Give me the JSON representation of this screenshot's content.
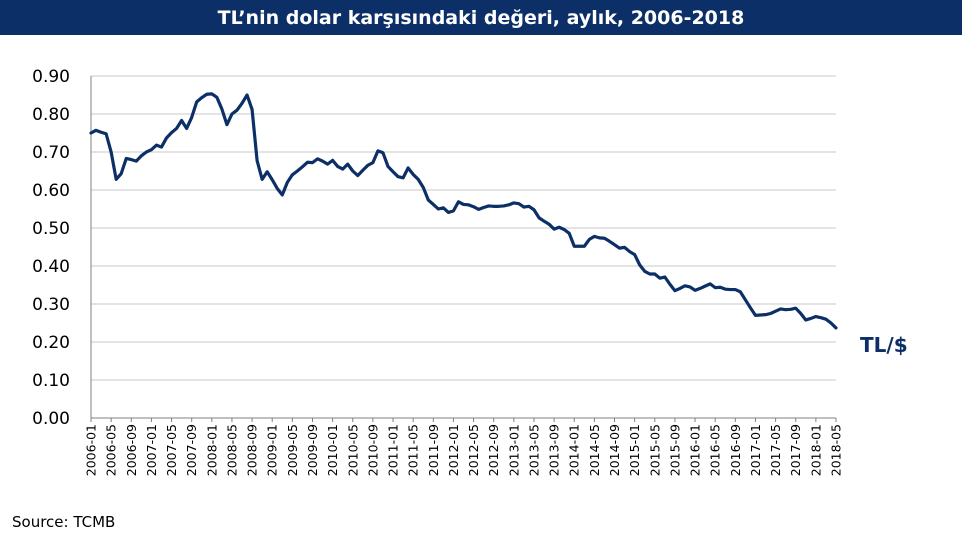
{
  "title": "TL’nin dolar karşısındaki değeri, aylık, 2006-2018",
  "source": "Source: TCMB",
  "colors": {
    "title_bg": "#0b2f66",
    "title_text": "#ffffff",
    "series": "#0b2f66",
    "grid": "#c8c8c8",
    "axis": "#808080"
  },
  "chart_data": {
    "type": "line",
    "title": "TL’nin dolar karşısındaki değeri, aylık, 2006-2018",
    "xlabel": "",
    "ylabel": "",
    "ylim": [
      0,
      0.9
    ],
    "yticks": [
      "0.00",
      "0.10",
      "0.20",
      "0.30",
      "0.40",
      "0.50",
      "0.60",
      "0.70",
      "0.80",
      "0.90"
    ],
    "grid": true,
    "xticks": [
      "2006-01",
      "2006-05",
      "2006-09",
      "2007-01",
      "2007-05",
      "2007-09",
      "2008-01",
      "2008-05",
      "2008-09",
      "2009-01",
      "2009-05",
      "2009-09",
      "2010-01",
      "2010-05",
      "2010-09",
      "2011-01",
      "2011-05",
      "2011-09",
      "2012-01",
      "2012-05",
      "2012-09",
      "2013-01",
      "2013-05",
      "2013-09",
      "2014-01",
      "2014-05",
      "2014-09",
      "2015-01",
      "2015-05",
      "2015-09",
      "2016-01",
      "2016-05",
      "2016-09",
      "2017-01",
      "2017-05",
      "2017-09",
      "2018-01",
      "2018-05"
    ],
    "series": [
      {
        "name": "TL/$",
        "values": [
          0.75,
          0.757,
          0.752,
          0.748,
          0.7,
          0.628,
          0.643,
          0.683,
          0.68,
          0.676,
          0.69,
          0.7,
          0.706,
          0.718,
          0.713,
          0.737,
          0.751,
          0.762,
          0.783,
          0.762,
          0.791,
          0.832,
          0.843,
          0.852,
          0.853,
          0.844,
          0.813,
          0.772,
          0.8,
          0.81,
          0.828,
          0.85,
          0.812,
          0.677,
          0.628,
          0.648,
          0.627,
          0.604,
          0.587,
          0.62,
          0.64,
          0.65,
          0.661,
          0.673,
          0.672,
          0.682,
          0.676,
          0.668,
          0.678,
          0.662,
          0.655,
          0.668,
          0.65,
          0.638,
          0.652,
          0.665,
          0.672,
          0.703,
          0.698,
          0.662,
          0.648,
          0.635,
          0.632,
          0.658,
          0.641,
          0.628,
          0.607,
          0.574,
          0.562,
          0.55,
          0.553,
          0.541,
          0.545,
          0.569,
          0.562,
          0.561,
          0.556,
          0.549,
          0.554,
          0.558,
          0.557,
          0.557,
          0.558,
          0.561,
          0.566,
          0.564,
          0.555,
          0.557,
          0.548,
          0.527,
          0.518,
          0.51,
          0.497,
          0.502,
          0.496,
          0.486,
          0.452,
          0.452,
          0.452,
          0.47,
          0.478,
          0.474,
          0.473,
          0.465,
          0.456,
          0.447,
          0.449,
          0.438,
          0.43,
          0.403,
          0.386,
          0.379,
          0.379,
          0.368,
          0.371,
          0.352,
          0.335,
          0.341,
          0.348,
          0.345,
          0.336,
          0.341,
          0.347,
          0.353,
          0.343,
          0.344,
          0.339,
          0.338,
          0.338,
          0.332,
          0.311,
          0.29,
          0.27,
          0.271,
          0.272,
          0.275,
          0.281,
          0.287,
          0.285,
          0.286,
          0.289,
          0.275,
          0.258,
          0.262,
          0.267,
          0.264,
          0.26,
          0.25,
          0.237
        ]
      }
    ]
  }
}
